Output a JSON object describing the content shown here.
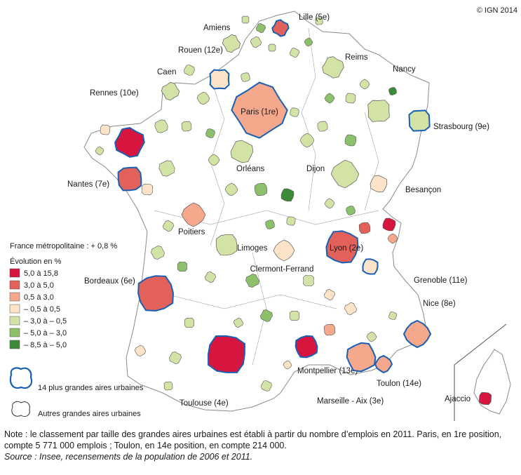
{
  "copyright": "© IGN 2014",
  "legend": {
    "france_total": "France métropolitaine : + 0,8 %",
    "title": "Évolution en %",
    "classes": [
      {
        "label": "5,0 à 15,8",
        "color": "#d7163f"
      },
      {
        "label": "3,0 à 5,0",
        "color": "#e2625b"
      },
      {
        "label": "0,5 à 3,0",
        "color": "#f5a88c"
      },
      {
        "label": "– 0,5 à 0,5",
        "color": "#fde3c8"
      },
      {
        "label": "– 3,0 à – 0,5",
        "color": "#d3e3a6"
      },
      {
        "label": "– 5,0 à – 3,0",
        "color": "#8cc06b"
      },
      {
        "label": "– 8,5 à – 5,0",
        "color": "#3d8a3a"
      }
    ],
    "largest_label": "14 plus grandes aires urbaines",
    "other_label": "Autres grandes aires urbaines"
  },
  "cities": [
    {
      "id": "lille",
      "label": "Lille (5e)",
      "class": 1
    },
    {
      "id": "amiens",
      "label": "Amiens",
      "class": 4
    },
    {
      "id": "rouen",
      "label": "Rouen (12e)",
      "class": 3
    },
    {
      "id": "reims",
      "label": "Reims",
      "class": 4
    },
    {
      "id": "caen",
      "label": "Caen",
      "class": 4
    },
    {
      "id": "nancy",
      "label": "Nancy",
      "class": 4
    },
    {
      "id": "rennes",
      "label": "Rennes (10e)",
      "class": 0
    },
    {
      "id": "paris",
      "label": "Paris (1re)",
      "class": 2
    },
    {
      "id": "strasbourg",
      "label": "Strasbourg (9e)",
      "class": 4
    },
    {
      "id": "orleans",
      "label": "Orléans",
      "class": 4
    },
    {
      "id": "dijon",
      "label": "Dijon",
      "class": 4
    },
    {
      "id": "nantes",
      "label": "Nantes (7e)",
      "class": 1
    },
    {
      "id": "besancon",
      "label": "Besançon",
      "class": 3
    },
    {
      "id": "poitiers",
      "label": "Poitiers",
      "class": 2
    },
    {
      "id": "limoges",
      "label": "Limoges",
      "class": 4
    },
    {
      "id": "lyon",
      "label": "Lyon (2e)",
      "class": 1
    },
    {
      "id": "clermont",
      "label": "Clermont-Ferrand",
      "class": 3
    },
    {
      "id": "bordeaux",
      "label": "Bordeaux (6e)",
      "class": 1
    },
    {
      "id": "grenoble",
      "label": "Grenoble (11e)",
      "class": 3
    },
    {
      "id": "nice",
      "label": "Nice (8e)",
      "class": 2
    },
    {
      "id": "montpellier",
      "label": "Montpellier (13e)",
      "class": 0
    },
    {
      "id": "toulouse",
      "label": "Toulouse (4e)",
      "class": 0
    },
    {
      "id": "toulon",
      "label": "Toulon (14e)",
      "class": 2
    },
    {
      "id": "marseille",
      "label": "Marseille - Aix (3e)",
      "class": 2
    },
    {
      "id": "ajaccio",
      "label": "Ajaccio",
      "class": 0
    }
  ],
  "notes": {
    "note": "Note : le classement par taille des grandes aires urbaines est établi à partir du nombre d’emplois en 2011. Paris, en 1re position, compte 5 771 000 emplois ; Toulon, en 14e position, en compte 214 000.",
    "source": "Source : Insee, recensements de la population de 2006 et 2011."
  }
}
